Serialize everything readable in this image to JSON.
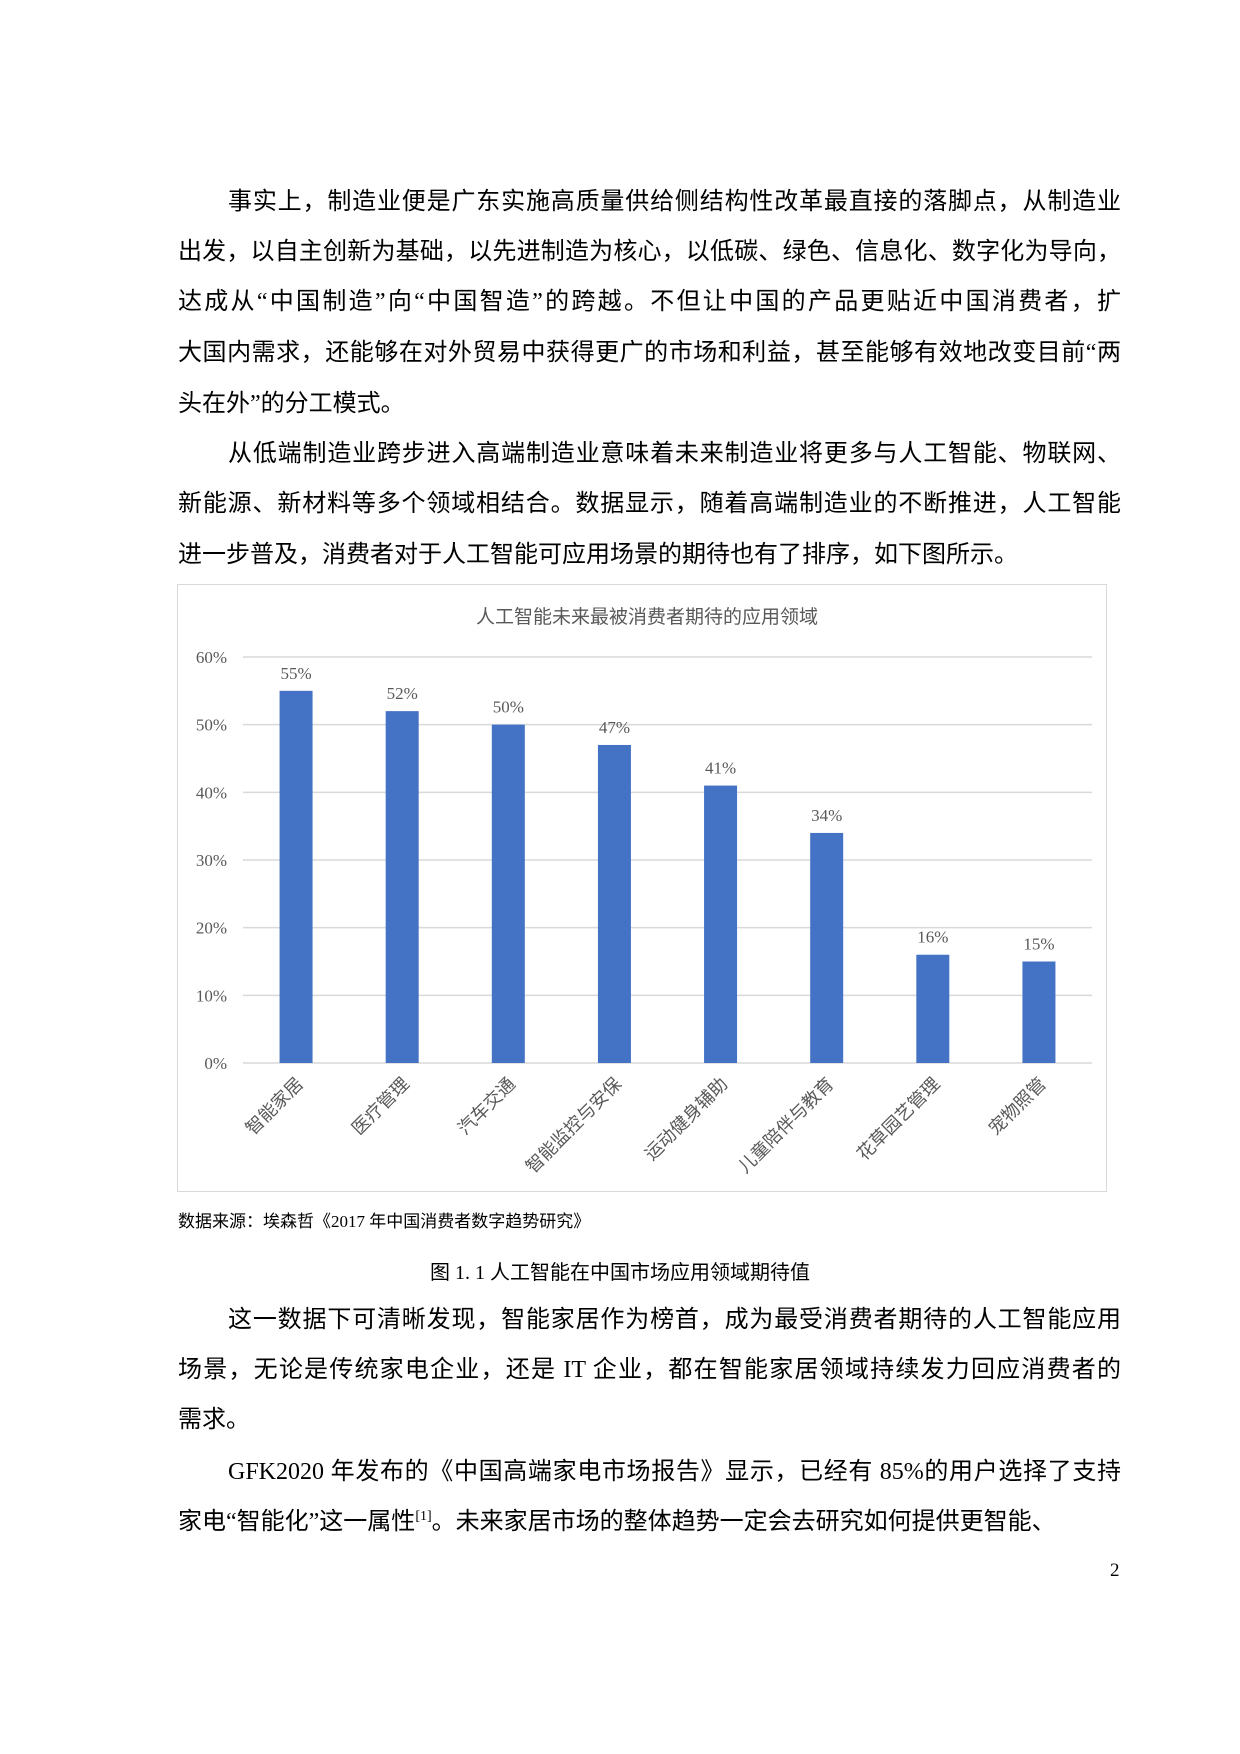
{
  "paragraphs": [
    {
      "lines": [
        "事实上，制造业便是广东实施高质量供给侧结构性改革最直接的落脚点，从制造业",
        "出发，以自主创新为基础，以先进制造为核心，以低碳、绿色、信息化、数字化为导向，",
        "达成从“中国制造”向“中国智造”的跨越。不但让中国的产品更贴近中国消费者，扩",
        "大国内需求，还能够在对外贸易中获得更广的市场和利益，甚至能够有效地改变目前“两",
        "头在外”的分工模式。"
      ]
    },
    {
      "lines": [
        "从低端制造业跨步进入高端制造业意味着未来制造业将更多与人工智能、物联网、",
        "新能源、新材料等多个领域相结合。数据显示，随着高端制造业的不断推进，人工智能",
        "进一步普及，消费者对于人工智能可应用场景的期待也有了排序，如下图所示。"
      ]
    },
    {
      "lines": [
        "这一数据下可清晰发现，智能家居作为榜首，成为最受消费者期待的人工智能应用",
        "场景，无论是传统家电企业，还是 IT 企业，都在智能家居领域持续发力回应消费者的",
        "需求。"
      ]
    },
    {
      "lines": [
        "GFK2020 年发布的《中国高端家电市场报告》显示，已经有 85%的用户选择了支持"
      ],
      "line2_before": "家电“智能化”这一属性",
      "line2_sup": "[1]",
      "line2_after": "。未来家居市场的整体趋势一定会去研究如何提供更智能、"
    }
  ],
  "figure": {
    "source_note": "数据来源：埃森哲《2017 年中国消费者数字趋势研究》",
    "caption": "图 1. 1 人工智能在中国市场应用领域期待值"
  },
  "page_number": "2",
  "chart_data": {
    "type": "bar",
    "title": "人工智能未来最被消费者期待的应用领域",
    "categories": [
      "智能家居",
      "医疗管理",
      "汽车交通",
      "智能监控与安保",
      "运动健身辅助",
      "儿童陪伴与教育",
      "花草园艺管理",
      "宠物照管"
    ],
    "values": [
      55,
      52,
      50,
      47,
      41,
      34,
      16,
      15
    ],
    "data_labels": [
      "55%",
      "52%",
      "50%",
      "47%",
      "41%",
      "34%",
      "16%",
      "15%"
    ],
    "yticks": [
      "0%",
      "10%",
      "20%",
      "30%",
      "40%",
      "50%",
      "60%"
    ],
    "ylim": [
      0,
      60
    ],
    "grid": true,
    "bar_color": "#4472c4",
    "gridline_color": "#d9d9d9",
    "text_color": "#595959"
  }
}
